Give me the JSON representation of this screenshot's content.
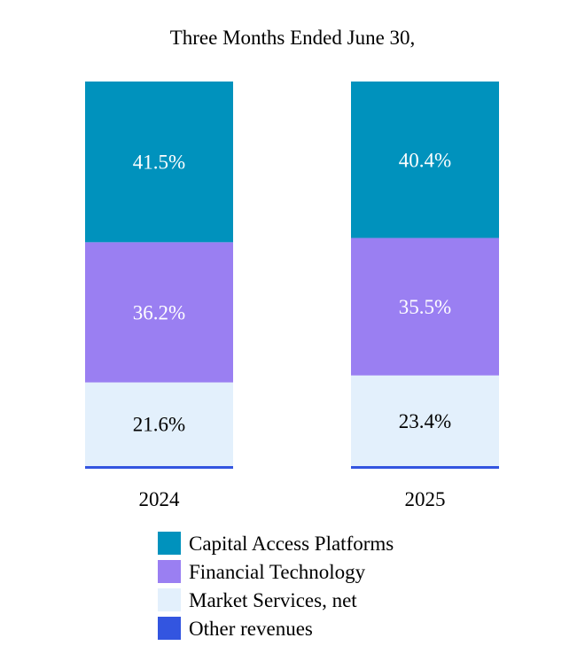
{
  "chart_data": {
    "type": "bar",
    "stacked": true,
    "title": "Three Months Ended June 30,",
    "categories": [
      "2024",
      "2025"
    ],
    "series": [
      {
        "name": "Other revenues",
        "values": [
          0.7,
          0.7
        ],
        "color": "#3355e0",
        "labels": [
          "",
          ""
        ],
        "label_color": "#ffffff"
      },
      {
        "name": "Market Services, net",
        "values": [
          21.6,
          23.4
        ],
        "color": "#e3f0fc",
        "labels": [
          "21.6%",
          "23.4%"
        ],
        "label_color": "#000000"
      },
      {
        "name": "Financial Technology",
        "values": [
          36.2,
          35.5
        ],
        "color": "#9a7ff2",
        "labels": [
          "36.2%",
          "35.5%"
        ],
        "label_color": "#ffffff"
      },
      {
        "name": "Capital Access Platforms",
        "values": [
          41.5,
          40.4
        ],
        "color": "#0092bd",
        "labels": [
          "41.5%",
          "40.4%"
        ],
        "label_color": "#ffffff"
      }
    ],
    "legend_order": [
      "Capital Access Platforms",
      "Financial Technology",
      "Market Services, net",
      "Other revenues"
    ],
    "legend_placement": "bottom",
    "ylim": [
      0,
      100
    ],
    "unit": "%",
    "grid": false
  }
}
